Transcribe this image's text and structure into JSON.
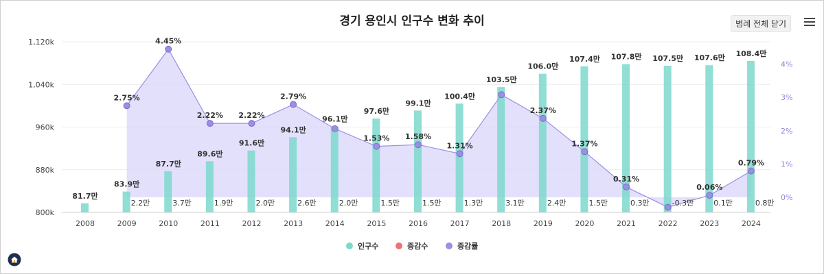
{
  "title": "경기 용인시 인구수 변화 추이",
  "legend_toggle_label": "범례 전체 닫기",
  "colors": {
    "bar": "#7dd8cc",
    "bar_overlap": "#86c6dc",
    "area": "#dcd8fb",
    "line": "#9a8fe0",
    "point": "#9a8fe0",
    "change": "#f07373",
    "right_axis": "#8f83e0"
  },
  "chart_data": {
    "type": "bar",
    "title": "경기 용인시 인구수 변화 추이",
    "categories": [
      "2008",
      "2009",
      "2010",
      "2011",
      "2012",
      "2013",
      "2014",
      "2015",
      "2016",
      "2017",
      "2018",
      "2019",
      "2020",
      "2021",
      "2022",
      "2023",
      "2024"
    ],
    "left_ylim": [
      800,
      1120
    ],
    "left_ticks": [
      "800k",
      "880k",
      "960k",
      "1,040k",
      "1,120k"
    ],
    "right_ylim": [
      -0.5,
      4.5
    ],
    "right_ticks": [
      "0%",
      "1%",
      "2%",
      "3%",
      "4%"
    ],
    "series": [
      {
        "name": "인구수",
        "values": [
          81.7,
          83.9,
          87.7,
          89.6,
          91.6,
          94.1,
          96.1,
          97.6,
          99.1,
          100.4,
          103.5,
          106.0,
          107.4,
          107.8,
          107.5,
          107.6,
          108.4
        ],
        "labels": [
          "81.7만",
          "83.9만",
          "87.7만",
          "89.6만",
          "91.6만",
          "94.1만",
          "96.1만",
          "97.6만",
          "99.1만",
          "100.4만",
          "103.5만",
          "106.0만",
          "107.4만",
          "107.8만",
          "107.5만",
          "107.6만",
          "108.4만"
        ]
      },
      {
        "name": "증감수",
        "values": [
          null,
          2.2,
          3.7,
          1.9,
          2.0,
          2.6,
          2.0,
          1.5,
          1.5,
          1.3,
          3.1,
          2.4,
          1.5,
          0.3,
          -0.3,
          0.1,
          0.8
        ],
        "labels": [
          "",
          "2.2만",
          "3.7만",
          "1.9만",
          "2.0만",
          "2.6만",
          "2.0만",
          "1.5만",
          "1.5만",
          "1.3만",
          "3.1만",
          "2.4만",
          "1.5만",
          "0.3만",
          "-0.3만",
          "0.1만",
          "0.8만"
        ]
      },
      {
        "name": "증감률",
        "values": [
          null,
          2.75,
          4.45,
          2.22,
          2.22,
          2.79,
          2.06,
          1.53,
          1.58,
          1.31,
          3.08,
          2.37,
          1.37,
          0.31,
          -0.3,
          0.06,
          0.79
        ],
        "labels": [
          "",
          "2.75%",
          "4.45%",
          "2.22%",
          "2.22%",
          "2.79%",
          "",
          "1.53%",
          "1.58%",
          "1.31%",
          "",
          "2.37%",
          "1.37%",
          "0.31%",
          "",
          "0.06%",
          "0.79%"
        ]
      }
    ]
  }
}
